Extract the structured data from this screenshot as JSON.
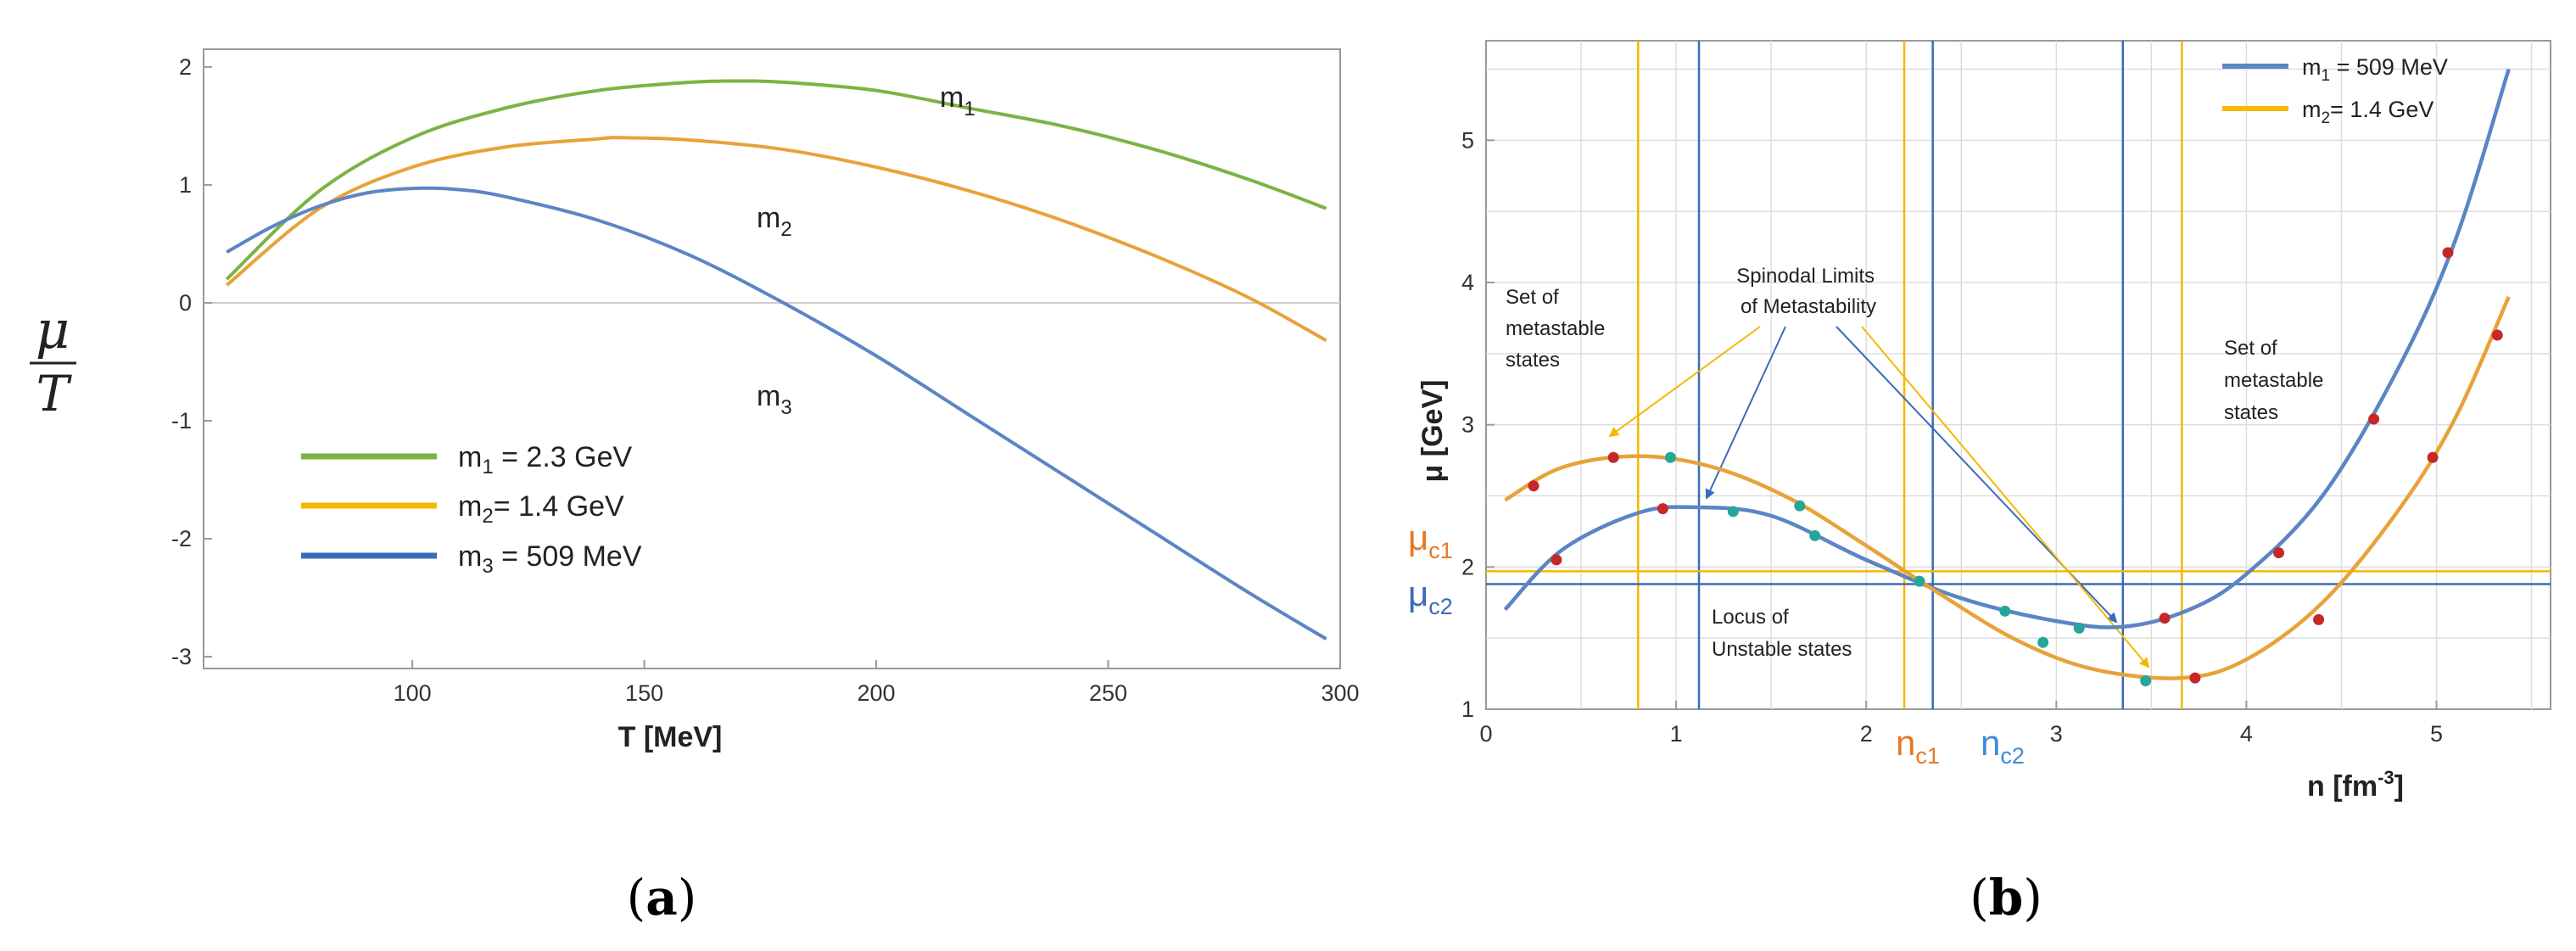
{
  "colors": {
    "green": "#7CB342",
    "orange": "#E8A23A",
    "yellow": "#F5B800",
    "blue": "#5B85C4",
    "darkblue": "#3B6BB8",
    "red": "#C62828",
    "teal": "#26A69A",
    "axis": "#888888",
    "grid": "#dddddd"
  },
  "panel_a": {
    "caption_prefix": "(",
    "caption_letter": "a",
    "caption_suffix": ")",
    "ylabel_num": "μ",
    "ylabel_den": "T",
    "xlabel": "T [MeV]",
    "curve_labels": [
      {
        "main": "m",
        "sub": "1"
      },
      {
        "main": "m",
        "sub": "2"
      },
      {
        "main": "m",
        "sub": "3"
      }
    ],
    "legend": [
      {
        "main": "m",
        "sub": "1",
        "rest": " = 2.3 GeV"
      },
      {
        "main": "m",
        "sub": "2",
        "rest": "= 1.4 GeV"
      },
      {
        "main": "m",
        "sub": "3",
        "rest": " = 509 MeV"
      }
    ]
  },
  "panel_b": {
    "caption_prefix": "(",
    "caption_letter": "b",
    "caption_suffix": ")",
    "ylabel": "μ  [GeV]",
    "xlabel_main": "n [fm",
    "xlabel_exp": "-3",
    "xlabel_end": "]",
    "mu_c1": {
      "main": "μ",
      "sub": "c1"
    },
    "mu_c2": {
      "main": "μ",
      "sub": "c2"
    },
    "n_c1": {
      "main": "n",
      "sub": "c1"
    },
    "n_c2": {
      "main": "n",
      "sub": "c2"
    },
    "annotations": {
      "set_left": [
        "Set of",
        "metastable",
        "states"
      ],
      "spinodal": [
        "Spinodal Limits",
        "of Metastability"
      ],
      "set_right": [
        "Set of",
        "metastable",
        "states"
      ],
      "locus": [
        "Locus of",
        "Unstable states"
      ]
    },
    "legend": [
      {
        "main": "m",
        "sub": "1",
        "rest": " = 509 MeV"
      },
      {
        "main": "m",
        "sub": "2",
        "rest": "= 1.4 GeV"
      }
    ]
  },
  "chart_data": [
    {
      "type": "line",
      "title": "",
      "xlabel": "T [MeV]",
      "ylabel": "μ/T",
      "xlim": [
        55,
        300
      ],
      "ylim": [
        -3.1,
        2.15
      ],
      "xticks": [
        100,
        150,
        200,
        250,
        300
      ],
      "yticks": [
        -3,
        -2,
        -1,
        0,
        1,
        2
      ],
      "series": [
        {
          "name": "m1 = 2.3 GeV",
          "color": "#7CB342",
          "x": [
            60,
            80,
            100,
            120,
            140,
            160,
            170,
            180,
            200,
            220,
            240,
            260,
            280,
            297
          ],
          "y": [
            0.2,
            0.95,
            1.4,
            1.65,
            1.8,
            1.87,
            1.88,
            1.87,
            1.8,
            1.65,
            1.5,
            1.3,
            1.05,
            0.8
          ]
        },
        {
          "name": "m2= 1.4 GeV",
          "color": "#E8A23A",
          "x": [
            60,
            80,
            100,
            120,
            140,
            145,
            160,
            180,
            200,
            220,
            240,
            260,
            280,
            297
          ],
          "y": [
            0.15,
            0.8,
            1.15,
            1.32,
            1.39,
            1.4,
            1.38,
            1.3,
            1.15,
            0.95,
            0.7,
            0.4,
            0.05,
            -0.32
          ]
        },
        {
          "name": "m3 = 509 MeV",
          "color": "#5B85C4",
          "x": [
            60,
            70,
            80,
            90,
            100,
            110,
            120,
            140,
            160,
            180,
            200,
            220,
            240,
            260,
            280,
            297
          ],
          "y": [
            0.43,
            0.65,
            0.82,
            0.93,
            0.97,
            0.96,
            0.9,
            0.7,
            0.4,
            0.0,
            -0.45,
            -0.95,
            -1.45,
            -1.95,
            -2.45,
            -2.85
          ]
        }
      ]
    },
    {
      "type": "line",
      "title": "",
      "xlabel": "n [fm-3]",
      "ylabel": "μ [GeV]",
      "xlim": [
        0,
        5.6
      ],
      "ylim": [
        1,
        5.7
      ],
      "xticks": [
        0,
        1,
        2,
        3,
        4,
        5
      ],
      "yticks": [
        1,
        2,
        3,
        4,
        5
      ],
      "hlines": [
        {
          "name": "μc1",
          "y": 1.97,
          "color": "#F5B800"
        },
        {
          "name": "μc2",
          "y": 1.88,
          "color": "#3B6BB8"
        }
      ],
      "vlines": [
        {
          "x": 0.8,
          "color": "#F5B800"
        },
        {
          "x": 2.2,
          "color": "#F5B800"
        },
        {
          "x": 3.66,
          "color": "#F5B800"
        },
        {
          "x": 1.12,
          "color": "#3B6BB8"
        },
        {
          "x": 2.35,
          "color": "#3B6BB8"
        },
        {
          "x": 3.35,
          "color": "#3B6BB8"
        }
      ],
      "series": [
        {
          "name": "m1 = 509 MeV",
          "color": "#5B85C4",
          "x": [
            0.1,
            0.4,
            0.8,
            1.1,
            1.5,
            2.0,
            2.5,
            3.0,
            3.35,
            3.7,
            4.0,
            4.4,
            4.8,
            5.1,
            5.38
          ],
          "y": [
            1.7,
            2.12,
            2.38,
            2.42,
            2.36,
            2.05,
            1.78,
            1.62,
            1.58,
            1.7,
            1.95,
            2.5,
            3.4,
            4.3,
            5.5
          ]
        },
        {
          "name": "m2= 1.4 GeV",
          "color": "#E8A23A",
          "x": [
            0.1,
            0.4,
            0.8,
            1.2,
            1.6,
            2.0,
            2.4,
            2.8,
            3.2,
            3.66,
            4.0,
            4.4,
            4.8,
            5.1,
            5.38
          ],
          "y": [
            2.47,
            2.7,
            2.78,
            2.7,
            2.48,
            2.15,
            1.8,
            1.48,
            1.28,
            1.22,
            1.35,
            1.75,
            2.4,
            3.05,
            3.9
          ]
        }
      ],
      "markers": [
        {
          "x": 0.25,
          "y": 2.57,
          "color": "#C62828"
        },
        {
          "x": 0.67,
          "y": 2.77,
          "color": "#C62828"
        },
        {
          "x": 0.97,
          "y": 2.77,
          "color": "#26A69A"
        },
        {
          "x": 1.65,
          "y": 2.43,
          "color": "#26A69A"
        },
        {
          "x": 0.37,
          "y": 2.05,
          "color": "#C62828"
        },
        {
          "x": 0.93,
          "y": 2.41,
          "color": "#C62828"
        },
        {
          "x": 1.3,
          "y": 2.39,
          "color": "#26A69A"
        },
        {
          "x": 1.73,
          "y": 2.22,
          "color": "#26A69A"
        },
        {
          "x": 2.28,
          "y": 1.9,
          "color": "#26A69A"
        },
        {
          "x": 2.73,
          "y": 1.69,
          "color": "#26A69A"
        },
        {
          "x": 3.12,
          "y": 1.57,
          "color": "#26A69A"
        },
        {
          "x": 3.57,
          "y": 1.64,
          "color": "#C62828"
        },
        {
          "x": 2.93,
          "y": 1.47,
          "color": "#26A69A"
        },
        {
          "x": 3.47,
          "y": 1.2,
          "color": "#26A69A"
        },
        {
          "x": 3.73,
          "y": 1.22,
          "color": "#C62828"
        },
        {
          "x": 4.17,
          "y": 2.1,
          "color": "#C62828"
        },
        {
          "x": 4.38,
          "y": 1.63,
          "color": "#C62828"
        },
        {
          "x": 4.67,
          "y": 3.04,
          "color": "#C62828"
        },
        {
          "x": 4.98,
          "y": 2.77,
          "color": "#C62828"
        },
        {
          "x": 5.06,
          "y": 4.21,
          "color": "#C62828"
        },
        {
          "x": 5.32,
          "y": 3.63,
          "color": "#C62828"
        }
      ]
    }
  ]
}
